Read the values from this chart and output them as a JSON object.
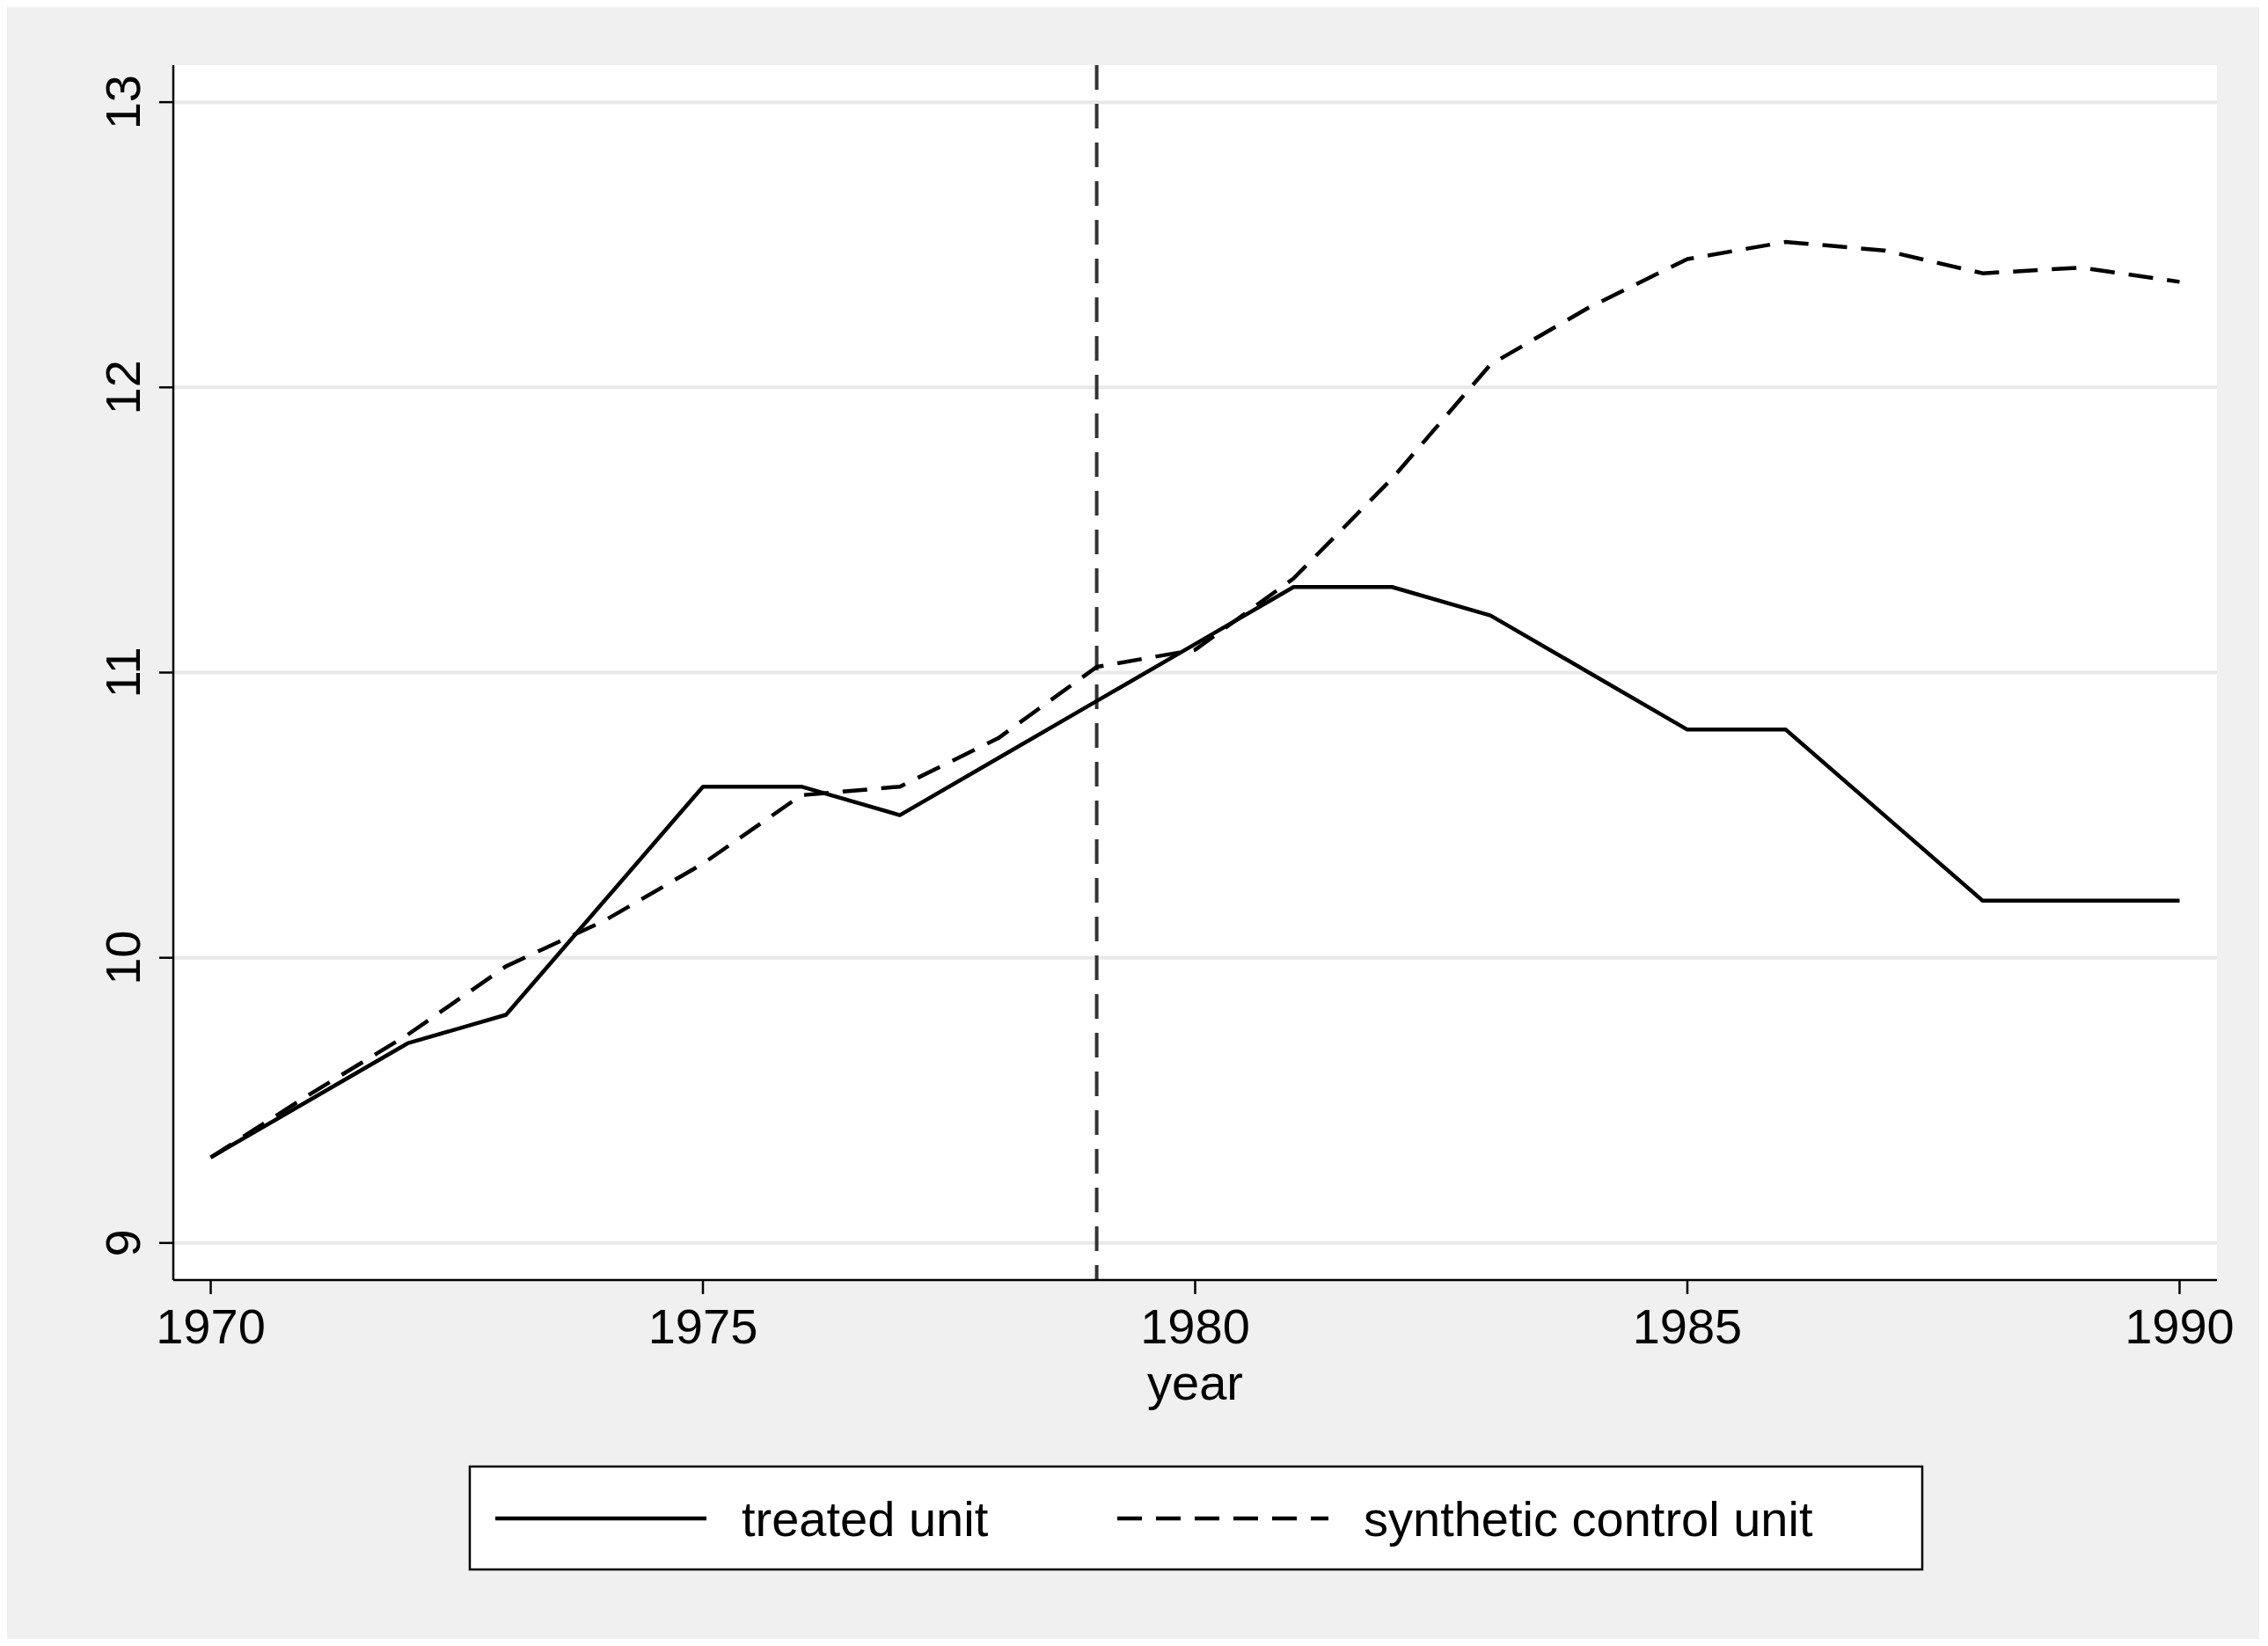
{
  "chart_data": {
    "type": "line",
    "xlabel": "year",
    "x": [
      1970,
      1971,
      1972,
      1973,
      1974,
      1975,
      1976,
      1977,
      1978,
      1979,
      1980,
      1981,
      1982,
      1983,
      1984,
      1985,
      1986,
      1987,
      1988,
      1989,
      1990
    ],
    "series": [
      {
        "name": "treated unit",
        "color": "#000000",
        "line_style": "solid",
        "values": [
          9.3,
          9.5,
          9.7,
          9.8,
          10.2,
          10.6,
          10.6,
          10.5,
          10.7,
          10.9,
          11.1,
          11.3,
          11.3,
          11.2,
          11.0,
          10.8,
          10.8,
          10.5,
          10.2,
          10.2,
          10.2
        ]
      },
      {
        "name": "synthetic control unit",
        "color": "#000000",
        "line_style": "dashed",
        "values": [
          9.3,
          9.52,
          9.73,
          9.97,
          10.13,
          10.33,
          10.57,
          10.6,
          10.77,
          11.02,
          11.08,
          11.33,
          11.68,
          12.08,
          12.28,
          12.45,
          12.51,
          12.48,
          12.4,
          12.42,
          12.37
        ]
      }
    ],
    "xlim": [
      1969.62,
      1990.38
    ],
    "xticks": [
      1970,
      1975,
      1980,
      1985,
      1990
    ],
    "ylim": [
      8.87,
      13.13
    ],
    "yticks": [
      9,
      10,
      11,
      12,
      13
    ],
    "ref_lines": [
      {
        "axis": "x",
        "value": 1979,
        "color": "#333333",
        "line_style": "dashed"
      }
    ],
    "grid": "y",
    "legend": "bottom",
    "marker": "none"
  }
}
